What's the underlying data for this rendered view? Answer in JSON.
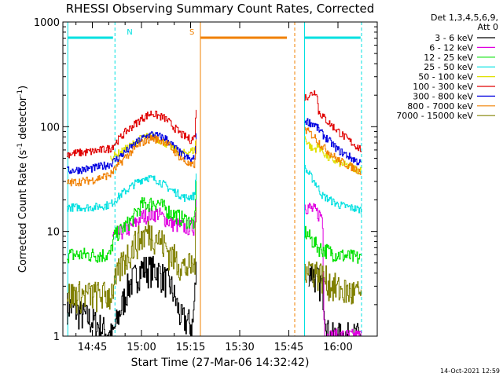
{
  "chart_data": {
    "type": "line",
    "title": "RHESSI Observing Summary Count Rates, Corrected",
    "xlabel": "Start Time (27-Mar-06 14:32:42)",
    "ylabel": "Corrected Count Rate (s⁻¹ detector⁻¹)",
    "ylabel_parts": {
      "a": "Corrected Count Rate (s",
      "sup1": "-1",
      "b": " detector",
      "sup2": "-1",
      "c": ")"
    },
    "yscale": "log",
    "ylim": [
      1,
      1000
    ],
    "xlim_minutes": [
      14.6,
      16.2
    ],
    "xlim": [
      "14:35",
      "16:12"
    ],
    "x_ticks": [
      "14:45",
      "15:00",
      "15:15",
      "15:30",
      "15:45",
      "16:00"
    ],
    "y_ticks": [
      "1",
      "10",
      "100",
      "1000"
    ],
    "legend_header": [
      "Det 1,3,4,5,6,9,",
      "Att 0"
    ],
    "legend_position": "right",
    "series": [
      {
        "name": "3 - 6 keV",
        "color": "#000000",
        "seg1": [
          [
            14.62,
            2
          ],
          [
            14.75,
            1.4
          ],
          [
            14.85,
            1
          ],
          [
            14.9,
            2
          ],
          [
            14.93,
            3
          ],
          [
            15.0,
            4.5
          ],
          [
            15.08,
            4.3
          ],
          [
            15.15,
            3
          ],
          [
            15.2,
            1.5
          ],
          [
            15.26,
            1.3
          ],
          [
            15.28,
            5
          ]
        ],
        "seg2": [
          [
            15.85,
            4.5
          ],
          [
            15.92,
            3
          ],
          [
            15.95,
            1
          ],
          [
            16.12,
            1
          ]
        ]
      },
      {
        "name": "6 - 12 keV",
        "color": "#e000e0",
        "seg1": [
          [
            14.62,
            null
          ],
          [
            14.85,
            9
          ],
          [
            14.95,
            11
          ],
          [
            15.0,
            14
          ],
          [
            15.08,
            15
          ],
          [
            15.15,
            12
          ],
          [
            15.22,
            11
          ],
          [
            15.27,
            11
          ],
          [
            15.28,
            30
          ]
        ],
        "seg2": [
          [
            15.83,
            18
          ],
          [
            15.92,
            14
          ],
          [
            15.93,
            1
          ],
          [
            16.12,
            1
          ]
        ]
      },
      {
        "name": "12 - 25 keV",
        "color": "#00e000",
        "seg1": [
          [
            14.62,
            6
          ],
          [
            14.7,
            6
          ],
          [
            14.84,
            6
          ],
          [
            14.86,
            9
          ],
          [
            14.95,
            13
          ],
          [
            15.0,
            18
          ],
          [
            15.08,
            19
          ],
          [
            15.15,
            15
          ],
          [
            15.22,
            13
          ],
          [
            15.27,
            12
          ],
          [
            15.28,
            35
          ]
        ],
        "seg2": [
          [
            15.83,
            10
          ],
          [
            15.9,
            7
          ],
          [
            16.0,
            6
          ],
          [
            16.12,
            5.5
          ]
        ]
      },
      {
        "name": "25 - 50 keV",
        "color": "#00e0e0",
        "seg1": [
          [
            14.62,
            17
          ],
          [
            14.75,
            17
          ],
          [
            14.84,
            18
          ],
          [
            14.9,
            23
          ],
          [
            14.97,
            29
          ],
          [
            15.02,
            33
          ],
          [
            15.08,
            31
          ],
          [
            15.15,
            25
          ],
          [
            15.22,
            21
          ],
          [
            15.27,
            22
          ],
          [
            15.28,
            45
          ]
        ],
        "seg2": [
          [
            15.83,
            40
          ],
          [
            15.88,
            30
          ],
          [
            15.92,
            22
          ],
          [
            16.0,
            18
          ],
          [
            16.12,
            16
          ]
        ]
      },
      {
        "name": "50 - 100 keV",
        "color": "#e0e000",
        "seg1": [
          [
            14.62,
            null
          ],
          [
            14.84,
            50
          ],
          [
            14.9,
            58
          ],
          [
            15.0,
            78
          ],
          [
            15.05,
            82
          ],
          [
            15.12,
            70
          ],
          [
            15.2,
            55
          ],
          [
            15.27,
            60
          ],
          [
            15.28,
            90
          ]
        ],
        "seg2": [
          [
            15.83,
            78
          ],
          [
            15.87,
            60
          ],
          [
            15.9,
            65
          ],
          [
            15.95,
            50
          ],
          [
            16.05,
            42
          ],
          [
            16.12,
            38
          ]
        ]
      },
      {
        "name": "100 - 300 keV",
        "color": "#e00000",
        "seg1": [
          [
            14.62,
            55
          ],
          [
            14.75,
            58
          ],
          [
            14.84,
            62
          ],
          [
            14.92,
            90
          ],
          [
            15.0,
            120
          ],
          [
            15.05,
            135
          ],
          [
            15.12,
            120
          ],
          [
            15.2,
            85
          ],
          [
            15.25,
            75
          ],
          [
            15.27,
            80
          ],
          [
            15.28,
            180
          ]
        ],
        "seg2": [
          [
            15.83,
            190
          ],
          [
            15.89,
            220
          ],
          [
            15.9,
            140
          ],
          [
            15.95,
            110
          ],
          [
            16.05,
            75
          ],
          [
            16.12,
            60
          ]
        ]
      },
      {
        "name": "300 - 800 keV",
        "color": "#0000e0",
        "seg1": [
          [
            14.62,
            38
          ],
          [
            14.75,
            40
          ],
          [
            14.84,
            44
          ],
          [
            14.92,
            58
          ],
          [
            15.0,
            77
          ],
          [
            15.05,
            85
          ],
          [
            15.12,
            78
          ],
          [
            15.2,
            55
          ],
          [
            15.25,
            48
          ],
          [
            15.27,
            50
          ],
          [
            15.28,
            90
          ]
        ],
        "seg2": [
          [
            15.83,
            115
          ],
          [
            15.88,
            105
          ],
          [
            15.92,
            85
          ],
          [
            16.0,
            60
          ],
          [
            16.12,
            44
          ]
        ]
      },
      {
        "name": "800 - 7000 keV",
        "color": "#f08000",
        "seg1": [
          [
            14.62,
            29
          ],
          [
            14.75,
            31
          ],
          [
            14.84,
            35
          ],
          [
            14.92,
            52
          ],
          [
            15.0,
            70
          ],
          [
            15.05,
            78
          ],
          [
            15.12,
            72
          ],
          [
            15.2,
            50
          ],
          [
            15.25,
            42
          ],
          [
            15.27,
            44
          ],
          [
            15.28,
            80
          ]
        ],
        "seg2": [
          [
            15.83,
            95
          ],
          [
            15.88,
            80
          ],
          [
            15.92,
            65
          ],
          [
            16.0,
            48
          ],
          [
            16.12,
            37
          ]
        ]
      },
      {
        "name": "7000 - 15000 keV",
        "color": "#808000",
        "seg1": [
          [
            14.62,
            2.5
          ],
          [
            14.75,
            2.5
          ],
          [
            14.84,
            2.5
          ],
          [
            14.9,
            5
          ],
          [
            14.97,
            8
          ],
          [
            15.03,
            10
          ],
          [
            15.08,
            9
          ],
          [
            15.15,
            6
          ],
          [
            15.22,
            4.5
          ],
          [
            15.27,
            4.8
          ],
          [
            15.28,
            20
          ]
        ],
        "seg2": [
          [
            15.83,
            5
          ],
          [
            15.9,
            4
          ],
          [
            16.0,
            2.8
          ],
          [
            16.12,
            2.5
          ]
        ]
      }
    ],
    "annotations": [
      {
        "label": "N",
        "color": "#00e0e0",
        "x_lines": [
          14.625,
          14.865
        ],
        "bar_x": [
          14.625,
          14.855
        ]
      },
      {
        "label": "S",
        "color": "#f08000",
        "x_lines": [
          15.3,
          15.78
        ],
        "bar_x": [
          15.3,
          15.74
        ]
      },
      {
        "label": "",
        "color": "#00e0e0",
        "x_lines": [
          15.83,
          16.12
        ],
        "bar_x": [
          15.832,
          16.115
        ]
      }
    ],
    "grid": false
  },
  "footer": {
    "date": "14-Oct-2021 12:59"
  }
}
